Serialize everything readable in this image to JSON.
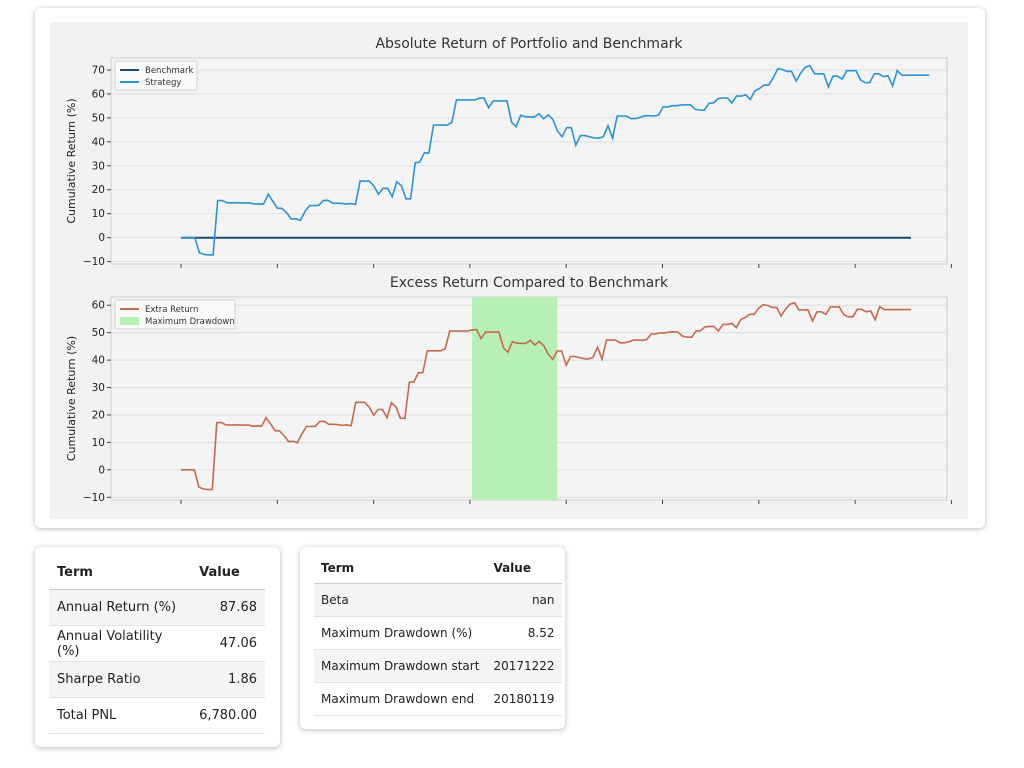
{
  "colors": {
    "benchmark": "#1d4a6e",
    "strategy": "#2a93d5",
    "extra_return": "#c56a4b",
    "drawdown": "#b6f0b4",
    "plot_bg": "#f4f4f4",
    "grid": "#dedede"
  },
  "chart_data": [
    {
      "type": "line",
      "title": "Absolute Return of Portfolio and Benchmark",
      "xlabel": "",
      "ylabel": "Cumulative Return (%)",
      "ylim": [
        -11,
        75
      ],
      "yticks": [
        -10,
        0,
        10,
        20,
        30,
        40,
        50,
        60,
        70
      ],
      "x_tick_count": 9,
      "grid": true,
      "legend": "top-left",
      "series": [
        {
          "name": "Benchmark",
          "values": [
            0,
            0,
            0,
            0,
            0,
            0,
            0,
            0,
            0,
            0,
            0,
            0,
            0,
            0,
            0,
            0,
            0,
            0,
            0,
            0,
            0,
            0,
            0,
            0,
            0,
            0,
            0,
            0,
            0,
            0,
            0,
            0,
            0,
            0,
            0,
            0,
            0,
            0,
            0,
            0,
            0,
            0,
            0,
            0,
            0,
            0,
            0,
            0,
            0,
            0,
            0,
            0,
            0,
            0,
            0,
            0,
            0,
            0,
            0,
            0,
            0,
            0,
            0,
            0,
            0,
            0,
            0,
            0,
            0,
            0,
            0,
            0,
            0,
            0,
            0,
            0,
            0,
            0,
            0,
            0,
            0,
            0,
            0,
            0,
            0,
            0,
            0,
            0,
            0,
            0,
            0,
            0,
            0,
            0,
            0,
            0,
            0,
            0,
            0,
            0,
            0,
            0,
            0,
            0,
            0,
            0,
            0,
            0,
            0,
            0,
            0,
            0,
            0,
            0,
            0,
            0,
            0,
            0,
            0,
            0,
            0,
            0,
            0,
            0,
            0,
            0,
            0,
            0,
            0,
            0,
            0,
            0,
            0,
            0,
            0,
            0,
            0,
            0,
            0,
            0,
            0,
            0,
            0,
            0,
            0,
            0,
            0,
            0,
            0,
            0,
            0,
            0,
            0,
            0,
            0,
            0,
            0,
            0,
            0,
            0
          ]
        },
        {
          "name": "Strategy",
          "values": [
            0,
            0,
            0,
            0,
            -6.3,
            -7,
            -7.2,
            -7.2,
            15.5,
            15.5,
            14.6,
            14.5,
            14.6,
            14.5,
            14.5,
            14.5,
            14.0,
            14.1,
            14.0,
            18.1,
            15.2,
            12.3,
            12.2,
            10.4,
            7.8,
            7.9,
            7.2,
            10.9,
            13.4,
            13.4,
            13.5,
            15.5,
            15.6,
            14.4,
            14.4,
            14.3,
            14.0,
            14.2,
            13.9,
            23.6,
            23.6,
            23.6,
            21.7,
            18.1,
            20.6,
            20.6,
            17.1,
            23.3,
            21.7,
            16.2,
            16.2,
            31.3,
            31.5,
            35.4,
            35.4,
            47,
            47,
            47,
            47,
            48.2,
            57.5,
            57.5,
            57.5,
            57.5,
            57.5,
            58.2,
            58.3,
            54.3,
            57.1,
            57.1,
            57.1,
            57.1,
            48.2,
            46.3,
            51.1,
            50.5,
            50.4,
            50.4,
            51.7,
            49.6,
            51.3,
            49.3,
            44.5,
            42.1,
            45.9,
            45.9,
            38.6,
            42.6,
            42.6,
            42.1,
            41.6,
            41.5,
            42.2,
            46.7,
            41.5,
            50.8,
            50.8,
            50.8,
            49.7,
            49.7,
            50.2,
            50.9,
            50.9,
            50.8,
            51.1,
            54.6,
            54.6,
            55.1,
            55.1,
            55.4,
            55.5,
            55.4,
            53.6,
            53.3,
            53.2,
            56.1,
            56.3,
            58.1,
            58.3,
            58.3,
            56.2,
            59.1,
            59.1,
            59.6,
            57.7,
            61.3,
            62.3,
            63.7,
            63.7,
            66.8,
            70.6,
            70.2,
            69.4,
            69.4,
            65.4,
            68.8,
            71.2,
            71.8,
            68.4,
            68.4,
            68.4,
            62.9,
            67.4,
            67.4,
            66.2,
            69.7,
            69.7,
            69.7,
            65.9,
            64.7,
            64.7,
            68.4,
            68.4,
            67.2,
            67.6,
            63.3,
            69.8,
            67.8,
            67.8,
            67.8,
            67.8,
            67.8,
            67.8,
            67.8
          ]
        }
      ]
    },
    {
      "type": "line",
      "title": "Excess Return Compared to Benchmark",
      "xlabel": "",
      "ylabel": "Cumulative Return (%)",
      "ylim": [
        -11,
        63
      ],
      "yticks": [
        -10,
        0,
        10,
        20,
        30,
        40,
        50,
        60
      ],
      "x_tick_count": 9,
      "grid": true,
      "legend": "top-left",
      "shaded_region": {
        "name": "Maximum Drawdown",
        "from_index": 65,
        "to_index": 84
      },
      "series": [
        {
          "name": "Extra Return",
          "values": [
            0,
            0,
            0,
            0,
            -6.3,
            -7,
            -7.2,
            -7.2,
            17.2,
            17.2,
            16.4,
            16.3,
            16.4,
            16.3,
            16.3,
            16.3,
            15.9,
            16,
            15.9,
            19,
            16.7,
            14.3,
            14.2,
            12.5,
            10.3,
            10.4,
            9.8,
            13.1,
            15.8,
            15.8,
            15.9,
            17.6,
            17.7,
            16.6,
            16.6,
            16.5,
            16.2,
            16.4,
            16.1,
            24.6,
            24.6,
            24.6,
            22.9,
            19.9,
            22,
            22,
            19,
            24.5,
            22.9,
            18.8,
            18.8,
            32,
            32.1,
            35.4,
            35.4,
            43.4,
            43.4,
            43.4,
            43.4,
            44.1,
            50.6,
            50.6,
            50.6,
            50.6,
            50.6,
            51,
            51.1,
            47.8,
            50.2,
            50.2,
            50.2,
            50.2,
            44.4,
            42.9,
            46.7,
            46.2,
            46.1,
            46.1,
            47.2,
            45.5,
            46.8,
            45.2,
            42.2,
            40.3,
            43.3,
            43.3,
            38.1,
            41.3,
            41.3,
            40.9,
            40.5,
            40.4,
            41,
            44.7,
            40.4,
            47.3,
            47.3,
            47.3,
            46.3,
            46.3,
            46.7,
            47.3,
            47.3,
            47.2,
            47.5,
            49.5,
            49.5,
            49.9,
            49.9,
            50.2,
            50.3,
            50.2,
            48.7,
            48.4,
            48.3,
            50.6,
            50.7,
            52.1,
            52.3,
            52.3,
            50.6,
            53,
            53,
            53.4,
            51.8,
            54.8,
            55.6,
            56.7,
            56.7,
            58.9,
            60.2,
            59.9,
            59.2,
            59.2,
            56.1,
            58.6,
            60.4,
            60.9,
            58.3,
            58.3,
            58.3,
            54.3,
            57.6,
            57.6,
            56.7,
            59.4,
            59.4,
            59.4,
            56.6,
            55.8,
            55.8,
            58.5,
            58.5,
            57.6,
            57.9,
            54.7,
            59.5,
            58.4,
            58.4,
            58.4,
            58.4,
            58.4,
            58.4,
            58.4
          ]
        }
      ]
    }
  ],
  "table1": {
    "headers": [
      "Term",
      "Value"
    ],
    "rows": [
      {
        "term": "Annual Return (%)",
        "value": "87.68"
      },
      {
        "term": "Annual Volatility (%)",
        "value": "47.06"
      },
      {
        "term": "Sharpe Ratio",
        "value": "1.86"
      },
      {
        "term": "Total PNL",
        "value": "6,780.00"
      }
    ]
  },
  "table2": {
    "headers": [
      "Term",
      "Value"
    ],
    "rows": [
      {
        "term": "Beta",
        "value": "nan"
      },
      {
        "term": "Maximum Drawdown (%)",
        "value": "8.52"
      },
      {
        "term": "Maximum Drawdown start",
        "value": "20171222"
      },
      {
        "term": "Maximum Drawdown end",
        "value": "20180119"
      }
    ]
  }
}
